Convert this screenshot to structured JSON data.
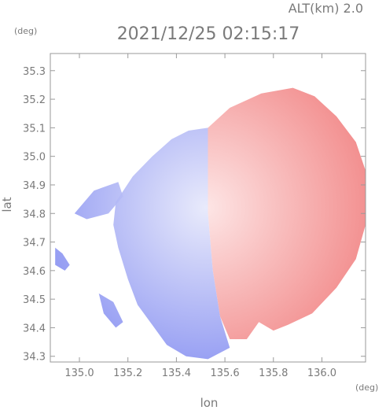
{
  "chart_data": {
    "type": "heatmap",
    "title": "2021/12/25 02:15:17",
    "subtitle": "ALT(km) 2.0",
    "xlabel": "lon",
    "ylabel": "lat",
    "x_unit": "(deg)",
    "y_unit": "(deg)",
    "xlim": [
      134.88,
      136.18
    ],
    "ylim": [
      34.28,
      35.36
    ],
    "x_ticks": [
      "135.0",
      "135.2",
      "135.4",
      "135.6",
      "135.8",
      "136.0"
    ],
    "y_ticks": [
      "34.3",
      "34.4",
      "34.5",
      "34.6",
      "34.7",
      "34.8",
      "34.9",
      "35.0",
      "35.1",
      "35.2",
      "35.3"
    ],
    "grid": false,
    "radar_center": {
      "lon": 135.52,
      "lat": 34.82
    },
    "colors": {
      "approaching": "#7d87f0",
      "receding": "#f07a7a",
      "axis": "#9a9a9a",
      "text": "#7a7a7a"
    },
    "regions": [
      {
        "name": "receding",
        "polygon": [
          [
            135.53,
            35.1
          ],
          [
            135.62,
            35.17
          ],
          [
            135.75,
            35.22
          ],
          [
            135.88,
            35.24
          ],
          [
            135.97,
            35.21
          ],
          [
            136.06,
            35.14
          ],
          [
            136.14,
            35.05
          ],
          [
            136.18,
            34.95
          ],
          [
            136.18,
            34.76
          ],
          [
            136.14,
            34.64
          ],
          [
            136.06,
            34.54
          ],
          [
            135.96,
            34.45
          ],
          [
            135.86,
            34.41
          ],
          [
            135.8,
            34.39
          ],
          [
            135.74,
            34.42
          ],
          [
            135.69,
            34.36
          ],
          [
            135.62,
            34.36
          ],
          [
            135.58,
            34.44
          ],
          [
            135.55,
            34.6
          ],
          [
            135.53,
            34.8
          ]
        ]
      },
      {
        "name": "approaching",
        "polygon": [
          [
            135.53,
            35.1
          ],
          [
            135.45,
            35.09
          ],
          [
            135.38,
            35.06
          ],
          [
            135.3,
            35.0
          ],
          [
            135.22,
            34.93
          ],
          [
            135.15,
            34.84
          ],
          [
            135.14,
            34.76
          ],
          [
            135.16,
            34.68
          ],
          [
            135.2,
            34.57
          ],
          [
            135.24,
            34.48
          ],
          [
            135.3,
            34.41
          ],
          [
            135.36,
            34.34
          ],
          [
            135.44,
            34.3
          ],
          [
            135.53,
            34.29
          ],
          [
            135.62,
            34.33
          ],
          [
            135.58,
            34.44
          ],
          [
            135.55,
            34.6
          ],
          [
            135.53,
            34.8
          ]
        ]
      },
      {
        "name": "approaching",
        "polygon": [
          [
            134.98,
            34.8
          ],
          [
            135.06,
            34.88
          ],
          [
            135.16,
            34.91
          ],
          [
            135.18,
            34.86
          ],
          [
            135.12,
            34.8
          ],
          [
            135.03,
            34.78
          ]
        ]
      },
      {
        "name": "approaching",
        "polygon": [
          [
            134.9,
            34.68
          ],
          [
            134.93,
            34.66
          ],
          [
            134.96,
            34.62
          ],
          [
            134.94,
            34.6
          ],
          [
            134.9,
            34.62
          ]
        ]
      },
      {
        "name": "approaching",
        "polygon": [
          [
            135.08,
            34.52
          ],
          [
            135.14,
            34.49
          ],
          [
            135.18,
            34.42
          ],
          [
            135.15,
            34.4
          ],
          [
            135.1,
            34.45
          ]
        ]
      }
    ]
  }
}
